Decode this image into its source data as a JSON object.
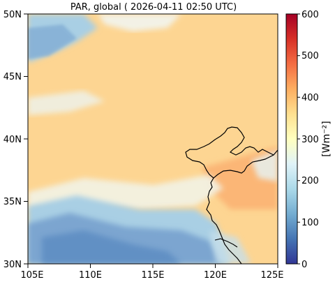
{
  "title": "PAR, global ( 2026-04-11 02:50 UTC)",
  "map": {
    "lon_ticks": [
      "105E",
      "110E",
      "115E",
      "120E",
      "125E"
    ],
    "lat_ticks": [
      "50N",
      "45N",
      "40N",
      "35N",
      "30N"
    ],
    "lon_range": [
      105,
      125
    ],
    "lat_range": [
      30,
      50
    ]
  },
  "colorbar": {
    "label": "[Wm⁻²]",
    "ticks": [
      "600",
      "500",
      "400",
      "300",
      "200",
      "100",
      "0"
    ],
    "range": [
      0,
      600
    ],
    "colormap": "RdYlBu_r",
    "colors": [
      "#313695",
      "#4575b4",
      "#74add1",
      "#abd9e9",
      "#e0f3f8",
      "#ffffbf",
      "#fee090",
      "#fdae61",
      "#f46d43",
      "#d73027",
      "#a50026"
    ]
  },
  "field_colors": {
    "land_dominant": "#fdd592",
    "sea_high": "#fbb676",
    "cloud_low": "#6e9ccb",
    "cloud_mid": "#a9cfe4",
    "cloud_thin": "#f2f5f0"
  }
}
